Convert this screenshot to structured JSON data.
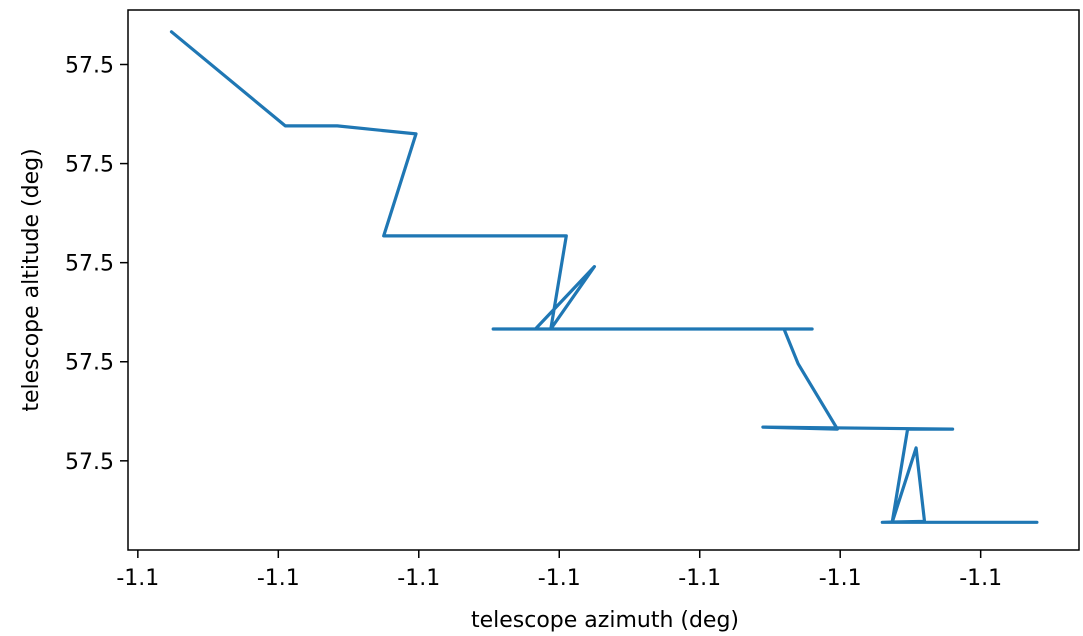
{
  "chart_data": {
    "type": "line",
    "title": "",
    "xlabel": "telescope azimuth (deg)",
    "ylabel": "telescope altitude (deg)",
    "x_tick_labels": [
      "-1.1",
      "-1.1",
      "-1.1",
      "-1.1",
      "-1.1",
      "-1.1",
      "-1.1"
    ],
    "y_tick_labels": [
      "57.5",
      "57.5",
      "57.5",
      "57.5",
      "57.5"
    ],
    "x_ticks": [
      0,
      1,
      2,
      3,
      4,
      5,
      6
    ],
    "y_ticks": [
      0,
      1,
      2,
      3,
      4
    ],
    "xlim": [
      -0.07,
      6.7
    ],
    "ylim": [
      -0.9,
      4.55
    ],
    "grid": false,
    "color": "#1f77b4",
    "series": [
      {
        "points": [
          [
            0.24,
            4.33
          ],
          [
            1.05,
            3.38
          ],
          [
            1.42,
            3.38
          ],
          [
            1.98,
            3.3
          ],
          [
            1.75,
            2.27
          ],
          [
            3.05,
            2.27
          ],
          [
            2.94,
            1.33
          ],
          [
            3.25,
            1.96
          ],
          [
            2.83,
            1.33
          ],
          [
            2.53,
            1.33
          ],
          [
            4.8,
            1.33
          ],
          [
            4.6,
            1.33
          ],
          [
            4.7,
            0.98
          ],
          [
            4.98,
            0.32
          ],
          [
            4.45,
            0.34
          ],
          [
            5.8,
            0.32
          ],
          [
            5.48,
            0.32
          ],
          [
            5.37,
            -0.62
          ],
          [
            5.54,
            0.13
          ],
          [
            5.6,
            -0.61
          ],
          [
            5.3,
            -0.62
          ],
          [
            6.4,
            -0.62
          ]
        ]
      }
    ]
  }
}
